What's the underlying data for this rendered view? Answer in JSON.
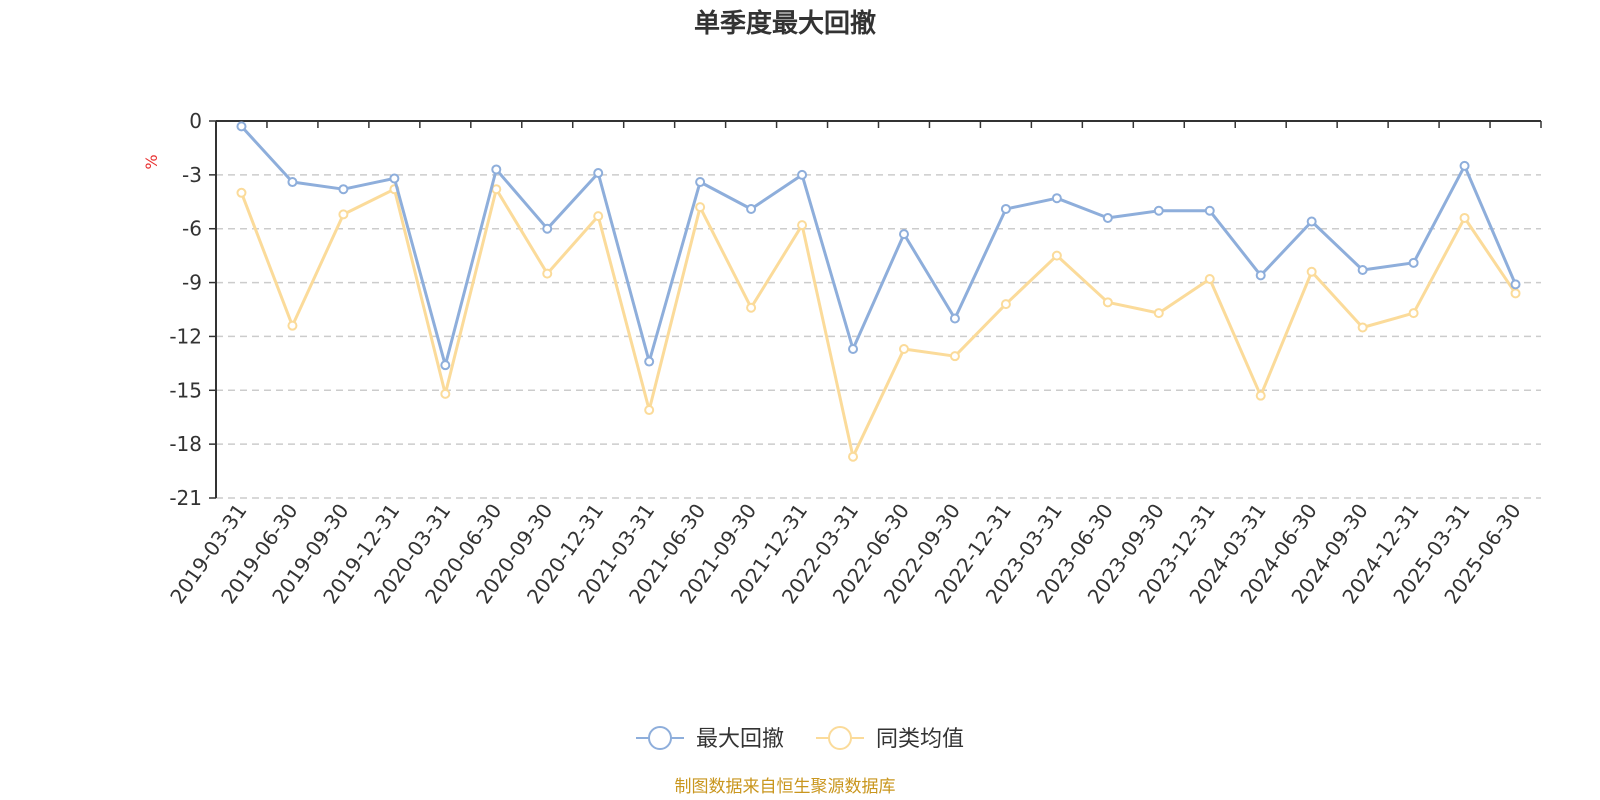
{
  "chart_data": {
    "type": "line",
    "title": "单季度最大回撤",
    "y_unit": "%",
    "ylim": [
      -21,
      0
    ],
    "y_ticks": [
      0,
      -3,
      -6,
      -9,
      -12,
      -15,
      -18,
      -21
    ],
    "grid": "horizontal dashed",
    "legend_position": "bottom-center",
    "categories": [
      "2019-03-31",
      "2019-06-30",
      "2019-09-30",
      "2019-12-31",
      "2020-03-31",
      "2020-06-30",
      "2020-09-30",
      "2020-12-31",
      "2021-03-31",
      "2021-06-30",
      "2021-09-30",
      "2021-12-31",
      "2022-03-31",
      "2022-06-30",
      "2022-09-30",
      "2022-12-31",
      "2023-03-31",
      "2023-06-30",
      "2023-09-30",
      "2023-12-31",
      "2024-03-31",
      "2024-06-30",
      "2024-09-30",
      "2024-12-31",
      "2025-03-31",
      "2025-06-30"
    ],
    "series": [
      {
        "name": "最大回撤",
        "color": "#8eaedb",
        "values": [
          -0.3,
          -3.4,
          -3.8,
          -3.2,
          -13.6,
          -2.7,
          -6.0,
          -2.9,
          -13.4,
          -3.4,
          -4.9,
          -3.0,
          -12.7,
          -6.3,
          -11.0,
          -4.9,
          -4.3,
          -5.4,
          -5.0,
          -5.0,
          -8.6,
          -5.6,
          -8.3,
          -7.9,
          -2.5,
          -9.1
        ]
      },
      {
        "name": "同类均值",
        "color": "#fbdb9a",
        "values": [
          -4.0,
          -11.4,
          -5.2,
          -3.8,
          -15.2,
          -3.8,
          -8.5,
          -5.3,
          -16.1,
          -4.8,
          -10.4,
          -5.8,
          -18.7,
          -12.7,
          -13.1,
          -10.2,
          -7.5,
          -10.1,
          -10.7,
          -8.8,
          -15.3,
          -8.4,
          -11.5,
          -10.7,
          -5.4,
          -9.6
        ]
      }
    ]
  },
  "source_note": "制图数据来自恒生聚源数据库"
}
